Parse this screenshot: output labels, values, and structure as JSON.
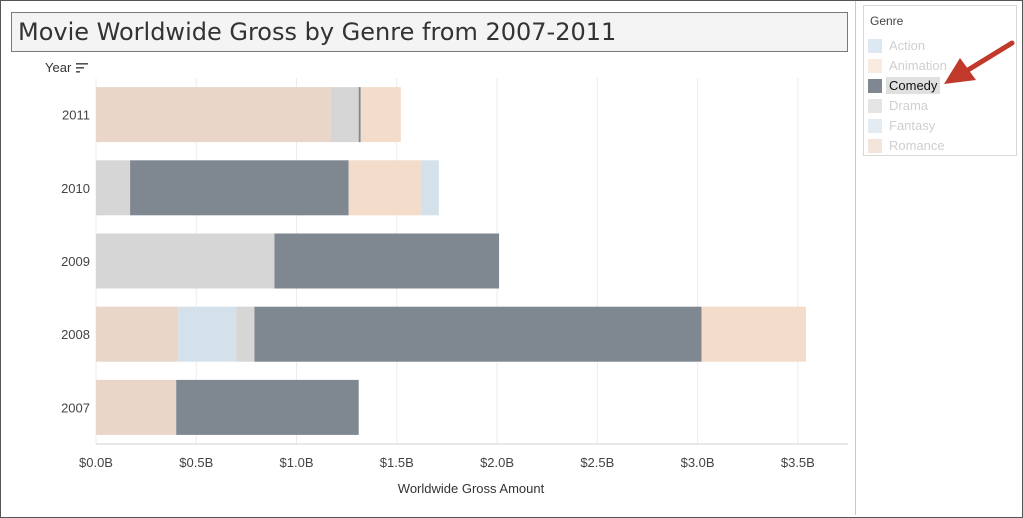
{
  "title": "Movie Worldwide Gross by Genre from 2007-2011",
  "year_header": "Year",
  "legend": {
    "title": "Genre",
    "items": [
      {
        "label": "Action",
        "color": "#9ebcda",
        "state": "dimmed"
      },
      {
        "label": "Animation",
        "color": "#f2c4a4",
        "state": "dimmed"
      },
      {
        "label": "Comedy",
        "color": "#7f8791",
        "state": "selected"
      },
      {
        "label": "Drama",
        "color": "#b5b5b5",
        "state": "dimmed"
      },
      {
        "label": "Fantasy",
        "color": "#aec8de",
        "state": "dimmed"
      },
      {
        "label": "Romance",
        "color": "#dfb49a",
        "state": "dimmed"
      }
    ]
  },
  "annotation_arrow_color": "#c0392b",
  "chart_data": {
    "type": "bar",
    "orientation": "horizontal",
    "stacked": true,
    "title": "Movie Worldwide Gross by Genre from 2007-2011",
    "xlabel": "Worldwide Gross Amount",
    "ylabel": "Year",
    "xlim": [
      0,
      3.75
    ],
    "x_ticks": [
      {
        "value": 0.0,
        "label": "$0.0B"
      },
      {
        "value": 0.5,
        "label": "$0.5B"
      },
      {
        "value": 1.0,
        "label": "$1.0B"
      },
      {
        "value": 1.5,
        "label": "$1.5B"
      },
      {
        "value": 2.0,
        "label": "$2.0B"
      },
      {
        "value": 2.5,
        "label": "$2.5B"
      },
      {
        "value": 3.0,
        "label": "$3.0B"
      },
      {
        "value": 3.5,
        "label": "$3.5B"
      }
    ],
    "grid": "vertical gridlines",
    "categories": [
      "2011",
      "2010",
      "2009",
      "2008",
      "2007"
    ],
    "highlighted_series": "Comedy",
    "bars": [
      {
        "year": "2011",
        "segments": [
          {
            "genre": "Romance",
            "value": 1.17,
            "color": "#ead6c8"
          },
          {
            "genre": "Drama",
            "value": 0.14,
            "color": "#d6d6d6"
          },
          {
            "genre": "Comedy",
            "value": 0.01,
            "color": "#7f8791"
          },
          {
            "genre": "Animation",
            "value": 0.2,
            "color": "#f3dcc9"
          }
        ]
      },
      {
        "year": "2010",
        "segments": [
          {
            "genre": "Drama",
            "value": 0.17,
            "color": "#d6d6d6"
          },
          {
            "genre": "Comedy",
            "value": 1.09,
            "color": "#7f8791"
          },
          {
            "genre": "Animation",
            "value": 0.36,
            "color": "#f3dcc9"
          },
          {
            "genre": "Fantasy",
            "value": 0.09,
            "color": "#d4e1ea"
          }
        ]
      },
      {
        "year": "2009",
        "segments": [
          {
            "genre": "Drama",
            "value": 0.89,
            "color": "#d6d6d6"
          },
          {
            "genre": "Comedy",
            "value": 1.12,
            "color": "#7f8791"
          }
        ]
      },
      {
        "year": "2008",
        "segments": [
          {
            "genre": "Romance",
            "value": 0.41,
            "color": "#ead6c8"
          },
          {
            "genre": "Fantasy",
            "value": 0.29,
            "color": "#d4e1ea"
          },
          {
            "genre": "Drama",
            "value": 0.09,
            "color": "#d6d6d6"
          },
          {
            "genre": "Comedy",
            "value": 2.23,
            "color": "#7f8791"
          },
          {
            "genre": "Animation",
            "value": 0.52,
            "color": "#f3dcc9"
          }
        ]
      },
      {
        "year": "2007",
        "segments": [
          {
            "genre": "Romance",
            "value": 0.4,
            "color": "#ead6c8"
          },
          {
            "genre": "Comedy",
            "value": 0.91,
            "color": "#7f8791"
          }
        ]
      }
    ]
  }
}
